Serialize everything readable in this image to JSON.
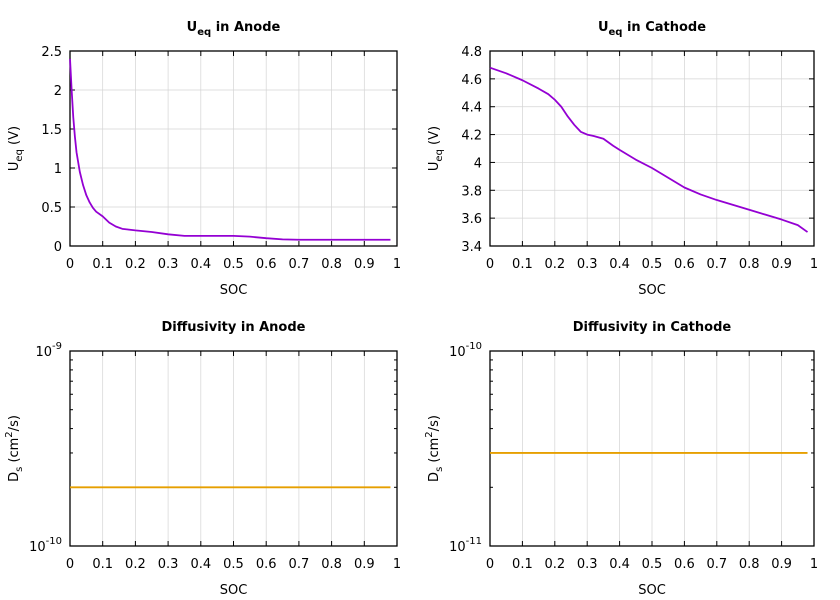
{
  "chart_data": [
    {
      "type": "line",
      "title": "U",
      "title_sub": "eq",
      "title_rest": " in Anode",
      "xlabel": "SOC",
      "ylabel": "U",
      "ylabel_sub": "eq",
      "ylabel_rest": " (V)",
      "xlim": [
        0,
        1
      ],
      "ylim": [
        0,
        2.5
      ],
      "xticks": [
        "0",
        "0.1",
        "0.2",
        "0.3",
        "0.4",
        "0.5",
        "0.6",
        "0.7",
        "0.8",
        "0.9",
        "1"
      ],
      "yticks": [
        "0",
        "0.5",
        "1",
        "1.5",
        "2",
        "2.5"
      ],
      "grid": true,
      "series": [
        {
          "color": "#9400d3",
          "x": [
            0.0,
            0.005,
            0.01,
            0.015,
            0.02,
            0.03,
            0.04,
            0.05,
            0.06,
            0.07,
            0.08,
            0.1,
            0.12,
            0.14,
            0.16,
            0.18,
            0.2,
            0.25,
            0.3,
            0.35,
            0.4,
            0.45,
            0.5,
            0.55,
            0.6,
            0.65,
            0.7,
            0.75,
            0.8,
            0.85,
            0.9,
            0.95,
            0.98
          ],
          "y": [
            2.4,
            2.0,
            1.65,
            1.4,
            1.2,
            0.95,
            0.78,
            0.65,
            0.56,
            0.49,
            0.44,
            0.38,
            0.3,
            0.25,
            0.22,
            0.21,
            0.2,
            0.18,
            0.15,
            0.13,
            0.13,
            0.13,
            0.13,
            0.12,
            0.1,
            0.085,
            0.08,
            0.08,
            0.08,
            0.08,
            0.08,
            0.08,
            0.08
          ]
        }
      ]
    },
    {
      "type": "line",
      "title": "U",
      "title_sub": "eq",
      "title_rest": " in Cathode",
      "xlabel": "SOC",
      "ylabel": "U",
      "ylabel_sub": "eq",
      "ylabel_rest": " (V)",
      "xlim": [
        0,
        1
      ],
      "ylim": [
        3.4,
        4.8
      ],
      "xticks": [
        "0",
        "0.1",
        "0.2",
        "0.3",
        "0.4",
        "0.5",
        "0.6",
        "0.7",
        "0.8",
        "0.9",
        "1"
      ],
      "yticks": [
        "3.4",
        "3.6",
        "3.8",
        "4",
        "4.2",
        "4.4",
        "4.6",
        "4.8"
      ],
      "grid": true,
      "series": [
        {
          "color": "#9400d3",
          "x": [
            0.0,
            0.05,
            0.1,
            0.15,
            0.18,
            0.2,
            0.22,
            0.24,
            0.26,
            0.28,
            0.3,
            0.32,
            0.35,
            0.38,
            0.4,
            0.45,
            0.5,
            0.55,
            0.6,
            0.65,
            0.7,
            0.75,
            0.8,
            0.85,
            0.9,
            0.95,
            0.98
          ],
          "y": [
            4.68,
            4.64,
            4.59,
            4.53,
            4.49,
            4.45,
            4.4,
            4.33,
            4.27,
            4.22,
            4.2,
            4.19,
            4.17,
            4.12,
            4.09,
            4.02,
            3.96,
            3.89,
            3.82,
            3.77,
            3.73,
            3.695,
            3.66,
            3.625,
            3.59,
            3.55,
            3.5
          ]
        }
      ]
    },
    {
      "type": "line",
      "title": "Diffusivity in Anode",
      "xlabel": "SOC",
      "ylabel": "D",
      "ylabel_sub": "s",
      "ylabel_rest": " (cm",
      "ylabel_sup": "2",
      "ylabel_rest2": "/s)",
      "xlim": [
        0,
        1
      ],
      "ylim": [
        1e-10,
        1e-09
      ],
      "yscale": "log",
      "xticks": [
        "0",
        "0.1",
        "0.2",
        "0.3",
        "0.4",
        "0.5",
        "0.6",
        "0.7",
        "0.8",
        "0.9",
        "1"
      ],
      "yticks": [
        {
          "base": "10",
          "exp": "-10",
          "value": 1e-10
        },
        {
          "base": "10",
          "exp": "-9",
          "value": 1e-09
        }
      ],
      "grid": true,
      "series": [
        {
          "color": "#e69f00",
          "x": [
            0.0,
            0.98
          ],
          "y": [
            2e-10,
            2e-10
          ]
        }
      ]
    },
    {
      "type": "line",
      "title": "Diffusivity in Cathode",
      "xlabel": "SOC",
      "ylabel": "D",
      "ylabel_sub": "s",
      "ylabel_rest": " (cm",
      "ylabel_sup": "2",
      "ylabel_rest2": "/s)",
      "xlim": [
        0,
        1
      ],
      "ylim": [
        1e-11,
        1e-10
      ],
      "yscale": "log",
      "xticks": [
        "0",
        "0.1",
        "0.2",
        "0.3",
        "0.4",
        "0.5",
        "0.6",
        "0.7",
        "0.8",
        "0.9",
        "1"
      ],
      "yticks": [
        {
          "base": "10",
          "exp": "-11",
          "value": 1e-11
        },
        {
          "base": "10",
          "exp": "-10",
          "value": 1e-10
        }
      ],
      "grid": true,
      "series": [
        {
          "color": "#e69f00",
          "x": [
            0.0,
            0.98
          ],
          "y": [
            3e-11,
            3e-11
          ]
        }
      ]
    }
  ]
}
